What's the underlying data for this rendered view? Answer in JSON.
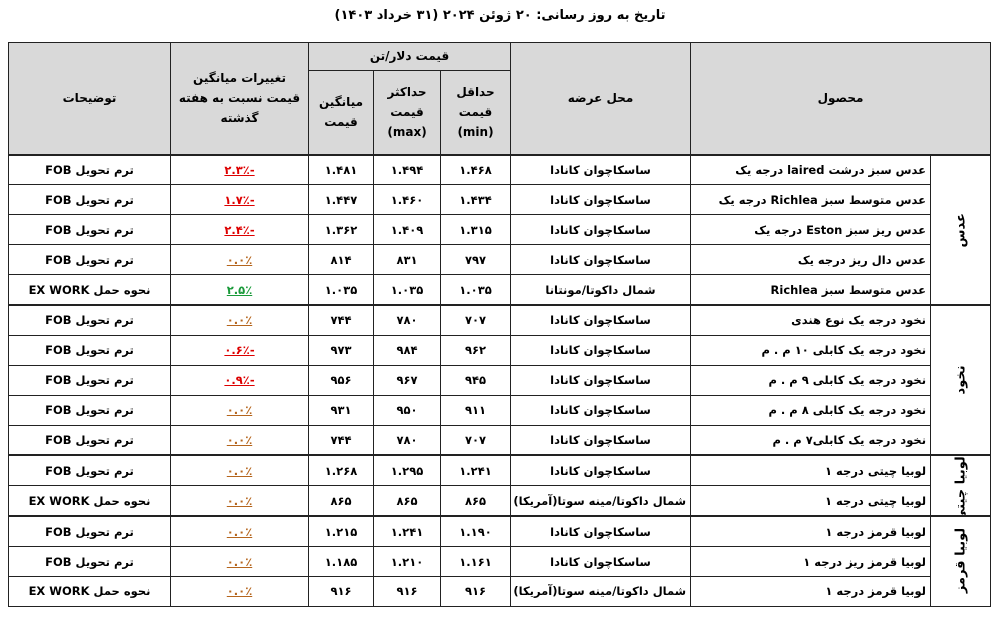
{
  "header": {
    "title": "تاریخ به روز رسانی: ۲۰ ژوئن ۲۰۲۴ (۳۱ خرداد ۱۴۰۳)"
  },
  "table": {
    "columns": {
      "product": "محصول",
      "location": "محل عرضه",
      "price_group": "قیمت دلار/تن",
      "min": "حداقل قیمت (min)",
      "max": "حداکثر قیمت (max)",
      "avg": "میانگین قیمت",
      "change": "تغییرات میانگین قیمت نسبت به هفته گذشته",
      "note": "توضیحات"
    },
    "groups": [
      {
        "label": "عدس",
        "rows": [
          [
            "عدس سبز درشت  laired درجه یک",
            "ساسکاچوان کانادا",
            "۱.۴۶۸",
            "۱.۴۹۴",
            "۱.۴۸۱",
            "-۲.۳٪",
            "ترم تحویل FOB"
          ],
          [
            "عدس متوسط سبز  Richlea درجه یک",
            "ساسکاچوان کانادا",
            "۱.۴۳۴",
            "۱.۴۶۰",
            "۱.۴۴۷",
            "-۱.۷٪",
            "ترم تحویل FOB"
          ],
          [
            "عدس ریز سبز Eston درجه یک",
            "ساسکاچوان کانادا",
            "۱.۳۱۵",
            "۱.۴۰۹",
            "۱.۳۶۲",
            "-۲.۴٪",
            "ترم تحویل FOB"
          ],
          [
            "عدس دال ریز  درجه یک",
            "ساسکاچوان کانادا",
            "۷۹۷",
            "۸۳۱",
            "۸۱۴",
            "۰.۰٪",
            "ترم تحویل FOB"
          ],
          [
            "عدس متوسط سبز  Richlea",
            "شمال داکوتا/مونتانا",
            "۱.۰۳۵",
            "۱.۰۳۵",
            "۱.۰۳۵",
            "۲.۵٪",
            "نحوه حمل EX WORK"
          ]
        ]
      },
      {
        "label": "نخود",
        "rows": [
          [
            "نخود درجه یک نوع  هندی",
            "ساسکاچوان کانادا",
            "۷۰۷",
            "۷۸۰",
            "۷۴۴",
            "۰.۰٪",
            "ترم تحویل FOB"
          ],
          [
            "نخود درجه یک کابلی ۱۰ م . م",
            "ساسکاچوان کانادا",
            "۹۶۲",
            "۹۸۴",
            "۹۷۳",
            "-۰.۶٪",
            "ترم تحویل FOB"
          ],
          [
            "نخود درجه یک کابلی ۹ م . م",
            "ساسکاچوان کانادا",
            "۹۴۵",
            "۹۶۷",
            "۹۵۶",
            "-۰.۹٪",
            "ترم تحویل FOB"
          ],
          [
            "نخود درجه یک کابلی ۸ م . م",
            "ساسکاچوان کانادا",
            "۹۱۱",
            "۹۵۰",
            "۹۳۱",
            "۰.۰٪",
            "ترم تحویل FOB"
          ],
          [
            "نخود درجه یک کابلی۷ م . م",
            "ساسکاچوان کانادا",
            "۷۰۷",
            "۷۸۰",
            "۷۴۴",
            "۰.۰٪",
            "ترم تحویل FOB"
          ]
        ]
      },
      {
        "label": "لوبیا چیتی",
        "rows": [
          [
            "لوبیا چیتی درجه ۱",
            "ساسکاچوان کانادا",
            "۱.۲۴۱",
            "۱.۲۹۵",
            "۱.۲۶۸",
            "۰.۰٪",
            "ترم تحویل FOB"
          ],
          [
            "لوبیا چیتی درجه ۱",
            "شمال داکوتا/مینه سوتا(آمریکا)",
            "۸۶۵",
            "۸۶۵",
            "۸۶۵",
            "۰.۰٪",
            "نحوه حمل EX WORK"
          ]
        ]
      },
      {
        "label": "لوبیا قرمز",
        "rows": [
          [
            "لوبیا قرمز درجه ۱",
            "ساسکاچوان کانادا",
            "۱.۱۹۰",
            "۱.۲۴۱",
            "۱.۲۱۵",
            "۰.۰٪",
            "ترم تحویل FOB"
          ],
          [
            "لوبیا قرمز ریز درجه ۱",
            "ساسکاچوان کانادا",
            "۱.۱۶۱",
            "۱.۲۱۰",
            "۱.۱۸۵",
            "۰.۰٪",
            "ترم تحویل FOB"
          ],
          [
            "لوبیا قرمز  درجه ۱",
            "شمال داکوتا/مینه سوتا(آمریکا)",
            "۹۱۶",
            "۹۱۶",
            "۹۱۶",
            "۰.۰٪",
            "نحوه حمل EX WORK"
          ]
        ]
      }
    ]
  }
}
